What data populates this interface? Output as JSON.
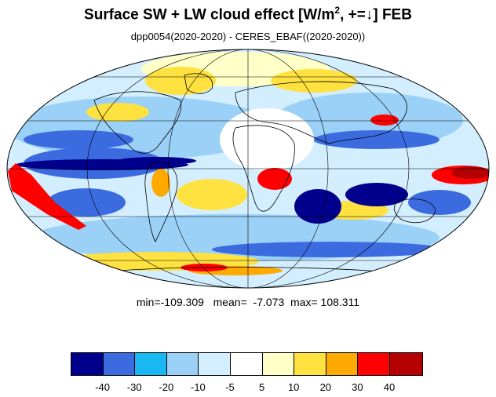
{
  "title": {
    "main": "Surface SW + LW cloud effect [W/m",
    "sup": "2",
    "tail": ", +=↓]  FEB"
  },
  "subtitle": "dpp0054(2020-2020) - CERES_EBAF((2020-2020))",
  "stats": {
    "text": "min=-109.309   mean=  -7.073  max= 108.311"
  },
  "colorbar": {
    "colors": [
      "#00008c",
      "#3c6be0",
      "#1ab8f2",
      "#9bd0f7",
      "#d3efff",
      "#ffffff",
      "#ffffc8",
      "#ffe140",
      "#ffaa00",
      "#ff0000",
      "#b40000"
    ],
    "labels": [
      "-40",
      "-30",
      "-20",
      "-10",
      "-5",
      "5",
      "10",
      "20",
      "30",
      "40"
    ]
  }
}
